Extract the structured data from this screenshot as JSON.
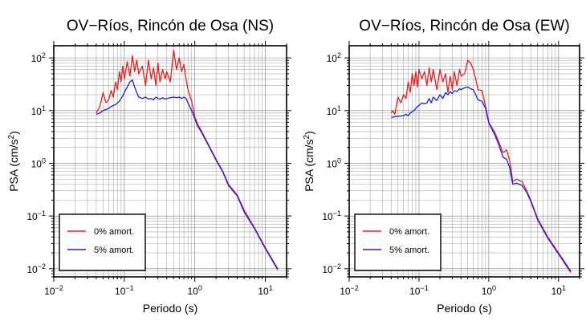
{
  "chart_data": [
    {
      "type": "line",
      "title": "OV−Ríos, Rincón de Osa (NS)",
      "xlabel": "Periodo (s)",
      "ylabel_base": "PSA (cm/s",
      "ylabel_sup": "2",
      "ylabel_end": ")",
      "xscale": "log",
      "yscale": "log",
      "xlim": [
        0.01,
        20
      ],
      "ylim": [
        0.007,
        170
      ],
      "x_ticks": [
        {
          "base": "10",
          "exp": "−2",
          "value": 0.01
        },
        {
          "base": "10",
          "exp": "−1",
          "value": 0.1
        },
        {
          "base": "10",
          "exp": "0",
          "value": 1
        },
        {
          "base": "10",
          "exp": "1",
          "value": 10
        }
      ],
      "y_ticks": [
        {
          "base": "10",
          "exp": "−2",
          "value": 0.01
        },
        {
          "base": "10",
          "exp": "−1",
          "value": 0.1
        },
        {
          "base": "10",
          "exp": "0",
          "value": 1
        },
        {
          "base": "10",
          "exp": "1",
          "value": 10
        },
        {
          "base": "10",
          "exp": "2",
          "value": 100
        }
      ],
      "grid": true,
      "legend": "bottom-left",
      "series": [
        {
          "name": "0% amort.",
          "color": "#ee1c1c",
          "x": [
            0.04,
            0.045,
            0.05,
            0.055,
            0.06,
            0.065,
            0.07,
            0.075,
            0.08,
            0.085,
            0.09,
            0.095,
            0.1,
            0.11,
            0.12,
            0.13,
            0.14,
            0.15,
            0.16,
            0.18,
            0.2,
            0.22,
            0.24,
            0.26,
            0.28,
            0.3,
            0.32,
            0.35,
            0.38,
            0.4,
            0.45,
            0.5,
            0.55,
            0.6,
            0.65,
            0.7,
            0.75,
            0.8,
            0.9,
            1.0,
            1.1,
            1.2,
            1.5,
            2.0,
            2.5,
            3.0,
            4.0,
            5.0,
            7.0,
            10.0,
            15.0
          ],
          "y": [
            9,
            12,
            22,
            14,
            16,
            24,
            18,
            35,
            25,
            55,
            35,
            70,
            40,
            85,
            45,
            110,
            55,
            90,
            50,
            70,
            30,
            90,
            40,
            65,
            30,
            80,
            35,
            60,
            40,
            55,
            35,
            140,
            60,
            100,
            55,
            75,
            40,
            25,
            15,
            7.5,
            5.5,
            4.5,
            2.5,
            1.2,
            0.7,
            0.4,
            0.25,
            0.13,
            0.06,
            0.025,
            0.01
          ]
        },
        {
          "name": "5% amort.",
          "color": "#1c1cee",
          "x": [
            0.04,
            0.045,
            0.05,
            0.055,
            0.06,
            0.065,
            0.07,
            0.075,
            0.08,
            0.085,
            0.09,
            0.095,
            0.1,
            0.11,
            0.12,
            0.13,
            0.14,
            0.15,
            0.16,
            0.18,
            0.2,
            0.22,
            0.24,
            0.26,
            0.28,
            0.3,
            0.32,
            0.35,
            0.38,
            0.4,
            0.45,
            0.5,
            0.55,
            0.6,
            0.65,
            0.7,
            0.75,
            0.8,
            0.9,
            1.0,
            1.1,
            1.2,
            1.5,
            2.0,
            2.5,
            3.0,
            4.0,
            5.0,
            7.0,
            10.0,
            15.0
          ],
          "y": [
            8.5,
            9,
            10,
            10.5,
            11,
            12,
            12.5,
            13,
            14,
            15,
            17,
            19,
            22,
            28,
            35,
            38,
            28,
            22,
            18,
            17,
            18,
            16.5,
            17,
            16,
            18,
            17,
            16.5,
            17.5,
            16.5,
            17,
            17.5,
            18,
            17.5,
            18,
            17,
            18,
            17,
            14,
            10,
            7,
            5,
            4.2,
            2.4,
            1.15,
            0.68,
            0.38,
            0.24,
            0.12,
            0.058,
            0.024,
            0.0095
          ]
        }
      ]
    },
    {
      "type": "line",
      "title": "OV−Ríos, Rincón de Osa (EW)",
      "xlabel": "Periodo (s)",
      "ylabel_base": "PSA (cm/s",
      "ylabel_sup": "2",
      "ylabel_end": ")",
      "xscale": "log",
      "yscale": "log",
      "xlim": [
        0.01,
        20
      ],
      "ylim": [
        0.007,
        170
      ],
      "x_ticks": [
        {
          "base": "10",
          "exp": "−2",
          "value": 0.01
        },
        {
          "base": "10",
          "exp": "−1",
          "value": 0.1
        },
        {
          "base": "10",
          "exp": "0",
          "value": 1
        },
        {
          "base": "10",
          "exp": "1",
          "value": 10
        }
      ],
      "y_ticks": [
        {
          "base": "10",
          "exp": "−2",
          "value": 0.01
        },
        {
          "base": "10",
          "exp": "−1",
          "value": 0.1
        },
        {
          "base": "10",
          "exp": "0",
          "value": 1
        },
        {
          "base": "10",
          "exp": "1",
          "value": 10
        },
        {
          "base": "10",
          "exp": "2",
          "value": 100
        }
      ],
      "grid": true,
      "legend": "bottom-left",
      "series": [
        {
          "name": "0% amort.",
          "color": "#ee1c1c",
          "x": [
            0.04,
            0.042,
            0.045,
            0.05,
            0.055,
            0.06,
            0.065,
            0.07,
            0.075,
            0.08,
            0.085,
            0.09,
            0.095,
            0.1,
            0.11,
            0.12,
            0.13,
            0.14,
            0.15,
            0.16,
            0.18,
            0.2,
            0.22,
            0.24,
            0.26,
            0.28,
            0.3,
            0.32,
            0.35,
            0.38,
            0.4,
            0.45,
            0.5,
            0.55,
            0.6,
            0.65,
            0.7,
            0.8,
            0.9,
            1.0,
            1.2,
            1.4,
            1.6,
            1.8,
            2.0,
            2.2,
            2.5,
            3.0,
            3.5,
            4.0,
            5.0,
            7.0,
            10.0,
            15.0
          ],
          "y": [
            9,
            10,
            8.5,
            18,
            14,
            20,
            17,
            35,
            22,
            50,
            30,
            55,
            28,
            60,
            40,
            55,
            30,
            65,
            35,
            60,
            25,
            60,
            35,
            50,
            22,
            45,
            25,
            55,
            30,
            60,
            45,
            50,
            90,
            80,
            60,
            40,
            25,
            24,
            12,
            6,
            4,
            2.5,
            1.6,
            1.8,
            1.1,
            0.45,
            0.5,
            0.45,
            0.3,
            0.2,
            0.09,
            0.04,
            0.02,
            0.009
          ]
        },
        {
          "name": "5% amort.",
          "color": "#1c1cee",
          "x": [
            0.04,
            0.042,
            0.045,
            0.05,
            0.055,
            0.06,
            0.065,
            0.07,
            0.075,
            0.08,
            0.085,
            0.09,
            0.095,
            0.1,
            0.11,
            0.12,
            0.13,
            0.14,
            0.15,
            0.16,
            0.18,
            0.2,
            0.22,
            0.24,
            0.26,
            0.28,
            0.3,
            0.32,
            0.35,
            0.38,
            0.4,
            0.45,
            0.5,
            0.55,
            0.6,
            0.65,
            0.7,
            0.8,
            0.9,
            1.0,
            1.2,
            1.4,
            1.6,
            1.8,
            2.0,
            2.2,
            2.5,
            3.0,
            3.5,
            4.0,
            5.0,
            7.0,
            10.0,
            15.0
          ],
          "y": [
            7.5,
            7.5,
            7.6,
            7.8,
            7.9,
            8,
            8.5,
            8,
            9,
            9.5,
            10,
            11,
            12,
            12.5,
            14,
            13.5,
            14,
            17,
            14,
            18,
            15.5,
            20,
            17,
            22,
            20,
            23,
            21,
            24,
            23,
            26,
            25,
            27,
            28,
            26,
            25,
            20,
            16,
            15,
            11,
            5.8,
            3.6,
            2.2,
            1.3,
            1.2,
            0.8,
            0.4,
            0.42,
            0.38,
            0.28,
            0.19,
            0.085,
            0.038,
            0.019,
            0.0085
          ]
        }
      ]
    }
  ]
}
